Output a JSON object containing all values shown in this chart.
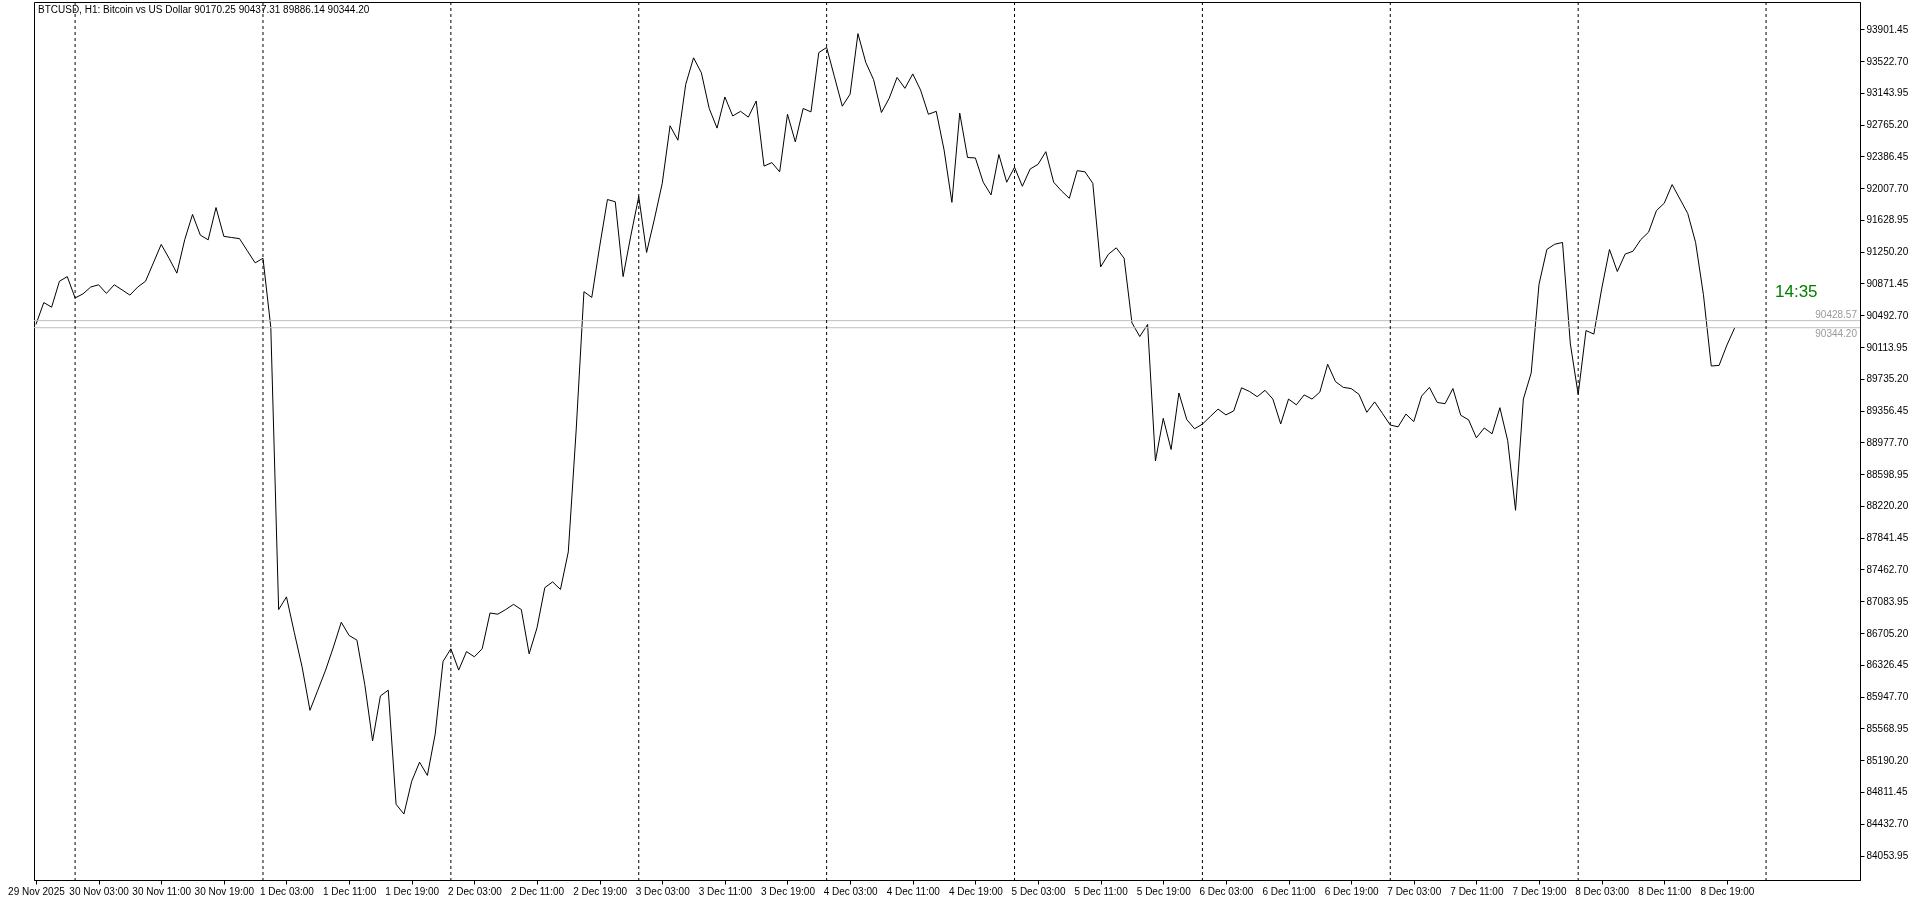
{
  "chart_data": {
    "type": "line",
    "title": "BTCUSD, H1:  Bitcoin vs US Dollar  90170.25 90437.31 89886.14 90344.20",
    "annotations": [
      "14:35"
    ],
    "x": [
      "2025-11-29T19:00",
      "2025-11-29T20:00",
      "2025-11-29T21:00",
      "2025-11-29T22:00",
      "2025-11-29T23:00",
      "2025-11-30T00:00",
      "2025-11-30T01:00",
      "2025-11-30T02:00",
      "2025-11-30T03:00",
      "2025-11-30T04:00",
      "2025-11-30T05:00",
      "2025-11-30T06:00",
      "2025-11-30T07:00",
      "2025-11-30T08:00",
      "2025-11-30T09:00",
      "2025-11-30T10:00",
      "2025-11-30T11:00",
      "2025-11-30T12:00",
      "2025-11-30T13:00",
      "2025-11-30T14:00",
      "2025-11-30T15:00",
      "2025-11-30T16:00",
      "2025-11-30T17:00",
      "2025-11-30T18:00",
      "2025-11-30T19:00",
      "2025-11-30T20:00",
      "2025-11-30T21:00",
      "2025-11-30T22:00",
      "2025-11-30T23:00",
      "2025-12-01T00:00",
      "2025-12-01T01:00",
      "2025-12-01T02:00",
      "2025-12-01T03:00",
      "2025-12-01T04:00",
      "2025-12-01T05:00",
      "2025-12-01T06:00",
      "2025-12-01T07:00",
      "2025-12-01T08:00",
      "2025-12-01T09:00",
      "2025-12-01T10:00",
      "2025-12-01T11:00",
      "2025-12-01T12:00",
      "2025-12-01T13:00",
      "2025-12-01T14:00",
      "2025-12-01T15:00",
      "2025-12-01T16:00",
      "2025-12-01T17:00",
      "2025-12-01T18:00",
      "2025-12-01T19:00",
      "2025-12-01T20:00",
      "2025-12-01T21:00",
      "2025-12-01T22:00",
      "2025-12-01T23:00",
      "2025-12-02T00:00",
      "2025-12-02T01:00",
      "2025-12-02T02:00",
      "2025-12-02T03:00",
      "2025-12-02T04:00",
      "2025-12-02T05:00",
      "2025-12-02T06:00",
      "2025-12-02T07:00",
      "2025-12-02T08:00",
      "2025-12-02T09:00",
      "2025-12-02T10:00",
      "2025-12-02T11:00",
      "2025-12-02T12:00",
      "2025-12-02T13:00",
      "2025-12-02T14:00",
      "2025-12-02T15:00",
      "2025-12-02T16:00",
      "2025-12-02T17:00",
      "2025-12-02T18:00",
      "2025-12-02T19:00",
      "2025-12-02T20:00",
      "2025-12-02T21:00",
      "2025-12-02T22:00",
      "2025-12-02T23:00",
      "2025-12-03T00:00",
      "2025-12-03T01:00",
      "2025-12-03T02:00",
      "2025-12-03T03:00",
      "2025-12-03T04:00",
      "2025-12-03T05:00",
      "2025-12-03T06:00",
      "2025-12-03T07:00",
      "2025-12-03T08:00",
      "2025-12-03T09:00",
      "2025-12-03T10:00",
      "2025-12-03T11:00",
      "2025-12-03T12:00",
      "2025-12-03T13:00",
      "2025-12-03T14:00",
      "2025-12-03T15:00",
      "2025-12-03T16:00",
      "2025-12-03T17:00",
      "2025-12-03T18:00",
      "2025-12-03T19:00",
      "2025-12-03T20:00",
      "2025-12-03T21:00",
      "2025-12-03T22:00",
      "2025-12-03T23:00",
      "2025-12-04T00:00",
      "2025-12-04T01:00",
      "2025-12-04T02:00",
      "2025-12-04T03:00",
      "2025-12-04T04:00",
      "2025-12-04T05:00",
      "2025-12-04T06:00",
      "2025-12-04T07:00",
      "2025-12-04T08:00",
      "2025-12-04T09:00",
      "2025-12-04T10:00",
      "2025-12-04T11:00",
      "2025-12-04T12:00",
      "2025-12-04T13:00",
      "2025-12-04T14:00",
      "2025-12-04T15:00",
      "2025-12-04T16:00",
      "2025-12-04T17:00",
      "2025-12-04T18:00",
      "2025-12-04T19:00",
      "2025-12-04T20:00",
      "2025-12-04T21:00",
      "2025-12-04T22:00",
      "2025-12-04T23:00",
      "2025-12-05T00:00",
      "2025-12-05T01:00",
      "2025-12-05T02:00",
      "2025-12-05T03:00",
      "2025-12-05T04:00",
      "2025-12-05T05:00",
      "2025-12-05T06:00",
      "2025-12-05T07:00",
      "2025-12-05T08:00",
      "2025-12-05T09:00",
      "2025-12-05T10:00",
      "2025-12-05T11:00",
      "2025-12-05T12:00",
      "2025-12-05T13:00",
      "2025-12-05T14:00",
      "2025-12-05T15:00",
      "2025-12-05T16:00",
      "2025-12-05T17:00",
      "2025-12-05T18:00",
      "2025-12-05T19:00",
      "2025-12-05T20:00",
      "2025-12-05T21:00",
      "2025-12-05T22:00",
      "2025-12-05T23:00",
      "2025-12-06T00:00",
      "2025-12-06T01:00",
      "2025-12-06T02:00",
      "2025-12-06T03:00",
      "2025-12-06T04:00",
      "2025-12-06T05:00",
      "2025-12-06T06:00",
      "2025-12-06T07:00",
      "2025-12-06T08:00",
      "2025-12-06T09:00",
      "2025-12-06T10:00",
      "2025-12-06T11:00",
      "2025-12-06T12:00",
      "2025-12-06T13:00",
      "2025-12-06T14:00",
      "2025-12-06T15:00",
      "2025-12-06T16:00",
      "2025-12-06T17:00",
      "2025-12-06T18:00",
      "2025-12-06T19:00",
      "2025-12-06T20:00",
      "2025-12-06T21:00",
      "2025-12-06T22:00",
      "2025-12-06T23:00",
      "2025-12-07T00:00",
      "2025-12-07T01:00",
      "2025-12-07T02:00",
      "2025-12-07T03:00",
      "2025-12-07T04:00",
      "2025-12-07T05:00",
      "2025-12-07T06:00",
      "2025-12-07T07:00",
      "2025-12-07T08:00",
      "2025-12-07T09:00",
      "2025-12-07T10:00",
      "2025-12-07T11:00",
      "2025-12-07T12:00",
      "2025-12-07T13:00",
      "2025-12-07T14:00",
      "2025-12-07T15:00",
      "2025-12-07T16:00",
      "2025-12-07T17:00",
      "2025-12-07T18:00",
      "2025-12-07T19:00",
      "2025-12-07T20:00",
      "2025-12-07T21:00",
      "2025-12-07T22:00",
      "2025-12-07T23:00",
      "2025-12-08T00:00",
      "2025-12-08T01:00",
      "2025-12-08T02:00",
      "2025-12-08T03:00",
      "2025-12-08T04:00",
      "2025-12-08T05:00",
      "2025-12-08T06:00",
      "2025-12-08T07:00",
      "2025-12-08T08:00",
      "2025-12-08T09:00",
      "2025-12-08T10:00",
      "2025-12-08T11:00",
      "2025-12-08T12:00",
      "2025-12-08T13:00",
      "2025-12-08T14:00",
      "2025-12-08T15:00",
      "2025-12-08T16:00",
      "2025-12-08T17:00",
      "2025-12-08T18:00",
      "2025-12-08T19:00",
      "2025-12-08T20:00"
    ],
    "series": [
      {
        "color": "#000000",
        "values": [
          90383,
          90644,
          90589,
          90898,
          90953,
          90699,
          90747,
          90829,
          90856,
          90753,
          90856,
          90795,
          90733,
          90829,
          90898,
          91117,
          91337,
          91172,
          90994,
          91392,
          91694,
          91447,
          91392,
          91776,
          91433,
          91419,
          91406,
          91261,
          91117,
          91172,
          90349,
          86985,
          87136,
          86711,
          86299,
          85784,
          86024,
          86264,
          86539,
          86834,
          86676,
          86621,
          86093,
          85420,
          85956,
          86024,
          84665,
          84548,
          84940,
          85166,
          85008,
          85502,
          86367,
          86518,
          86264,
          86484,
          86422,
          86518,
          86944,
          86930,
          86985,
          87047,
          86985,
          86457,
          86766,
          87246,
          87315,
          87225,
          87672,
          89113,
          90774,
          90705,
          91309,
          91872,
          91845,
          90953,
          91447,
          91907,
          91241,
          91639,
          92065,
          92751,
          92579,
          93245,
          93561,
          93382,
          92957,
          92723,
          93094,
          92868,
          92923,
          92854,
          93046,
          92270,
          92312,
          92202,
          92888,
          92559,
          92957,
          92916,
          93623,
          93684,
          93334,
          92984,
          93128,
          93849,
          93506,
          93300,
          92909,
          93080,
          93327,
          93197,
          93369,
          93176,
          92888,
          92923,
          92463,
          91838,
          92902,
          92373,
          92367,
          92078,
          91927,
          92408,
          92078,
          92257,
          92030,
          92236,
          92291,
          92442,
          92078,
          91975,
          91886,
          92216,
          92202,
          92065,
          91069,
          91220,
          91296,
          91172,
          90403,
          90239,
          90383,
          88756,
          89264,
          88893,
          89566,
          89250,
          89140,
          89195,
          89285,
          89374,
          89305,
          89353,
          89628,
          89585,
          89522,
          89598,
          89494,
          89197,
          89494,
          89425,
          89543,
          89494,
          89577,
          89909,
          89702,
          89633,
          89619,
          89550,
          89336,
          89460,
          89322,
          89184,
          89163,
          89315,
          89225,
          89529,
          89633,
          89453,
          89439,
          89619,
          89301,
          89246,
          89032,
          89149,
          89080,
          89391,
          88997,
          88168,
          89494,
          89805,
          90862,
          91277,
          91339,
          91360,
          90151,
          89550,
          90310,
          90268,
          90807,
          91277,
          91014,
          91221,
          91256,
          91394,
          91484,
          91740,
          91829,
          92050,
          91878,
          91705,
          91360,
          90738,
          89888,
          89895,
          90137,
          90344.2
        ]
      }
    ],
    "xlim": [
      "2025-11-29T18:45",
      "2025-12-09T12:00"
    ],
    "xticks": [
      {
        "value": "2025-11-29T19:00",
        "label": "29 Nov 2025"
      },
      {
        "value": "2025-11-30T03:00",
        "label": "30 Nov 03:00"
      },
      {
        "value": "2025-11-30T11:00",
        "label": "30 Nov 11:00"
      },
      {
        "value": "2025-11-30T19:00",
        "label": "30 Nov 19:00"
      },
      {
        "value": "2025-12-01T03:00",
        "label": "1 Dec 03:00"
      },
      {
        "value": "2025-12-01T11:00",
        "label": "1 Dec 11:00"
      },
      {
        "value": "2025-12-01T19:00",
        "label": "1 Dec 19:00"
      },
      {
        "value": "2025-12-02T03:00",
        "label": "2 Dec 03:00"
      },
      {
        "value": "2025-12-02T11:00",
        "label": "2 Dec 11:00"
      },
      {
        "value": "2025-12-02T19:00",
        "label": "2 Dec 19:00"
      },
      {
        "value": "2025-12-03T03:00",
        "label": "3 Dec 03:00"
      },
      {
        "value": "2025-12-03T11:00",
        "label": "3 Dec 11:00"
      },
      {
        "value": "2025-12-03T19:00",
        "label": "3 Dec 19:00"
      },
      {
        "value": "2025-12-04T03:00",
        "label": "4 Dec 03:00"
      },
      {
        "value": "2025-12-04T11:00",
        "label": "4 Dec 11:00"
      },
      {
        "value": "2025-12-04T19:00",
        "label": "4 Dec 19:00"
      },
      {
        "value": "2025-12-05T03:00",
        "label": "5 Dec 03:00"
      },
      {
        "value": "2025-12-05T11:00",
        "label": "5 Dec 11:00"
      },
      {
        "value": "2025-12-05T19:00",
        "label": "5 Dec 19:00"
      },
      {
        "value": "2025-12-06T03:00",
        "label": "6 Dec 03:00"
      },
      {
        "value": "2025-12-06T11:00",
        "label": "6 Dec 11:00"
      },
      {
        "value": "2025-12-06T19:00",
        "label": "6 Dec 19:00"
      },
      {
        "value": "2025-12-07T03:00",
        "label": "7 Dec 03:00"
      },
      {
        "value": "2025-12-07T11:00",
        "label": "7 Dec 11:00"
      },
      {
        "value": "2025-12-07T19:00",
        "label": "7 Dec 19:00"
      },
      {
        "value": "2025-12-08T03:00",
        "label": "8 Dec 03:00"
      },
      {
        "value": "2025-12-08T11:00",
        "label": "8 Dec 11:00"
      },
      {
        "value": "2025-12-08T19:00",
        "label": "8 Dec 19:00"
      }
    ],
    "ylim": [
      83762,
      94226
    ],
    "yticks": [
      93901.45,
      {
        "value": 93522.7,
        "label": "93522.70"
      },
      93143.95,
      {
        "value": 92765.2,
        "label": "92765.20"
      },
      92386.45,
      {
        "value": 92007.7,
        "label": "92007.70"
      },
      91628.95,
      {
        "value": 91250.2,
        "label": "91250.20"
      },
      90871.45,
      {
        "value": 90492.7,
        "label": "90492.70"
      },
      90113.95,
      {
        "value": 89735.2,
        "label": "89735.20"
      },
      89356.45,
      {
        "value": 88977.7,
        "label": "88977.70"
      },
      88598.95,
      {
        "value": 88220.2,
        "label": "88220.20"
      },
      87841.45,
      {
        "value": 87462.7,
        "label": "87462.70"
      },
      87083.95,
      {
        "value": 86705.2,
        "label": "86705.20"
      },
      86326.45,
      {
        "value": 85947.7,
        "label": "85947.70"
      },
      85568.95,
      {
        "value": 85190.2,
        "label": "85190.20"
      },
      84811.45,
      {
        "value": 84432.7,
        "label": "84432.70"
      },
      84053.95
    ],
    "ref_lines": [
      {
        "axis": "x",
        "value": "2025-11-30T00:00",
        "color": "#000000",
        "line_style": "dashed"
      },
      {
        "axis": "x",
        "value": "2025-12-01T00:00",
        "color": "#000000",
        "line_style": "dashed"
      },
      {
        "axis": "x",
        "value": "2025-12-02T00:00",
        "color": "#000000",
        "line_style": "dashed"
      },
      {
        "axis": "x",
        "value": "2025-12-03T00:00",
        "color": "#000000",
        "line_style": "dashed"
      },
      {
        "axis": "x",
        "value": "2025-12-04T00:00",
        "color": "#000000",
        "line_style": "dashed"
      },
      {
        "axis": "x",
        "value": "2025-12-05T00:00",
        "color": "#000000",
        "line_style": "dashed"
      },
      {
        "axis": "x",
        "value": "2025-12-06T00:00",
        "color": "#000000",
        "line_style": "dashed"
      },
      {
        "axis": "x",
        "value": "2025-12-07T00:00",
        "color": "#000000",
        "line_style": "dashed"
      },
      {
        "axis": "x",
        "value": "2025-12-08T00:00",
        "color": "#000000",
        "line_style": "dashed"
      },
      {
        "axis": "x",
        "value": "2025-12-09T00:00",
        "color": "#000000",
        "line_style": "dashed"
      },
      {
        "axis": "y",
        "value": 90428.57,
        "label": "90428.57",
        "color": "#c0c0c0",
        "line_style": "solid"
      },
      {
        "axis": "y",
        "value": 90344.2,
        "label": "90344.20",
        "color": "#c0c0c0",
        "line_style": "solid"
      }
    ]
  }
}
